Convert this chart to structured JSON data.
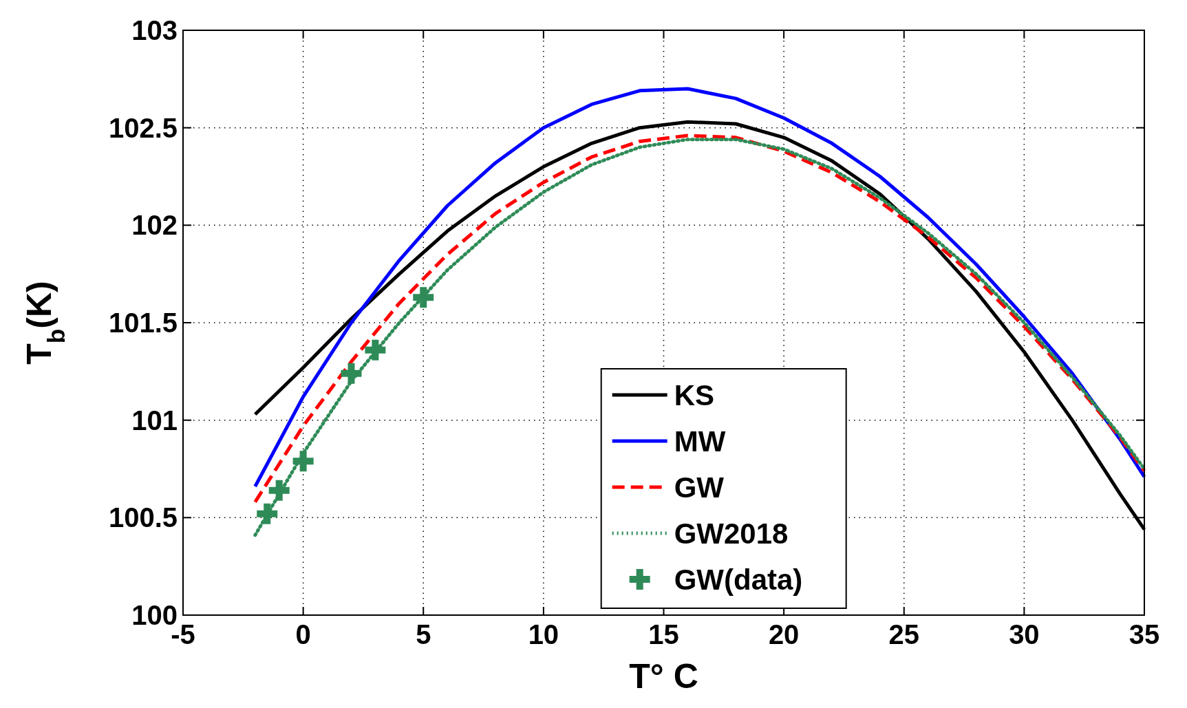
{
  "chart_data": {
    "type": "line",
    "xlabel": "T° C",
    "ylabel": "T$_{b}$(K)",
    "xlim": [
      -5,
      35
    ],
    "xticks": [
      -5,
      0,
      5,
      10,
      15,
      20,
      25,
      30,
      35
    ],
    "ylim": [
      100,
      103
    ],
    "yticks": [
      100,
      100.5,
      101,
      101.5,
      102,
      102.5,
      103
    ],
    "grid": true,
    "legend": "bottom",
    "x": [
      -2,
      0,
      2,
      4,
      6,
      8,
      10,
      12,
      14,
      16,
      18,
      20,
      22,
      24,
      26,
      28,
      30,
      32,
      34,
      35
    ],
    "series": [
      {
        "name": "KS",
        "color": "#000000",
        "line_style": "solid",
        "values": [
          101.03,
          101.27,
          101.52,
          101.75,
          101.97,
          102.15,
          102.3,
          102.42,
          102.5,
          102.53,
          102.52,
          102.45,
          102.33,
          102.16,
          101.93,
          101.66,
          101.35,
          101.0,
          100.62,
          100.44
        ]
      },
      {
        "name": "MW",
        "color": "#0000ff",
        "line_style": "solid",
        "values": [
          100.66,
          101.12,
          101.5,
          101.82,
          102.1,
          102.32,
          102.5,
          102.62,
          102.69,
          102.7,
          102.65,
          102.55,
          102.42,
          102.25,
          102.04,
          101.8,
          101.53,
          101.24,
          100.9,
          100.71
        ]
      },
      {
        "name": "GW",
        "color": "#ff0000",
        "line_style": "dashed",
        "values": [
          100.58,
          100.97,
          101.3,
          101.6,
          101.85,
          102.06,
          102.22,
          102.35,
          102.43,
          102.46,
          102.45,
          102.38,
          102.27,
          102.12,
          101.94,
          101.73,
          101.48,
          101.21,
          100.91,
          100.74
        ]
      },
      {
        "name": "GW2018",
        "color": "#2e8b57",
        "line_style": "dotted",
        "values": [
          100.41,
          100.83,
          101.2,
          101.5,
          101.77,
          101.99,
          102.17,
          102.31,
          102.4,
          102.44,
          102.44,
          102.39,
          102.29,
          102.14,
          101.96,
          101.75,
          101.5,
          101.22,
          100.92,
          100.75
        ]
      },
      {
        "name": "GW(data)",
        "type": "scatter",
        "marker": "cross",
        "color": "#2e8b57",
        "x": [
          -1.5,
          -1,
          0,
          2,
          3,
          5
        ],
        "values": [
          100.52,
          100.64,
          100.79,
          101.24,
          101.36,
          101.63
        ]
      }
    ]
  }
}
